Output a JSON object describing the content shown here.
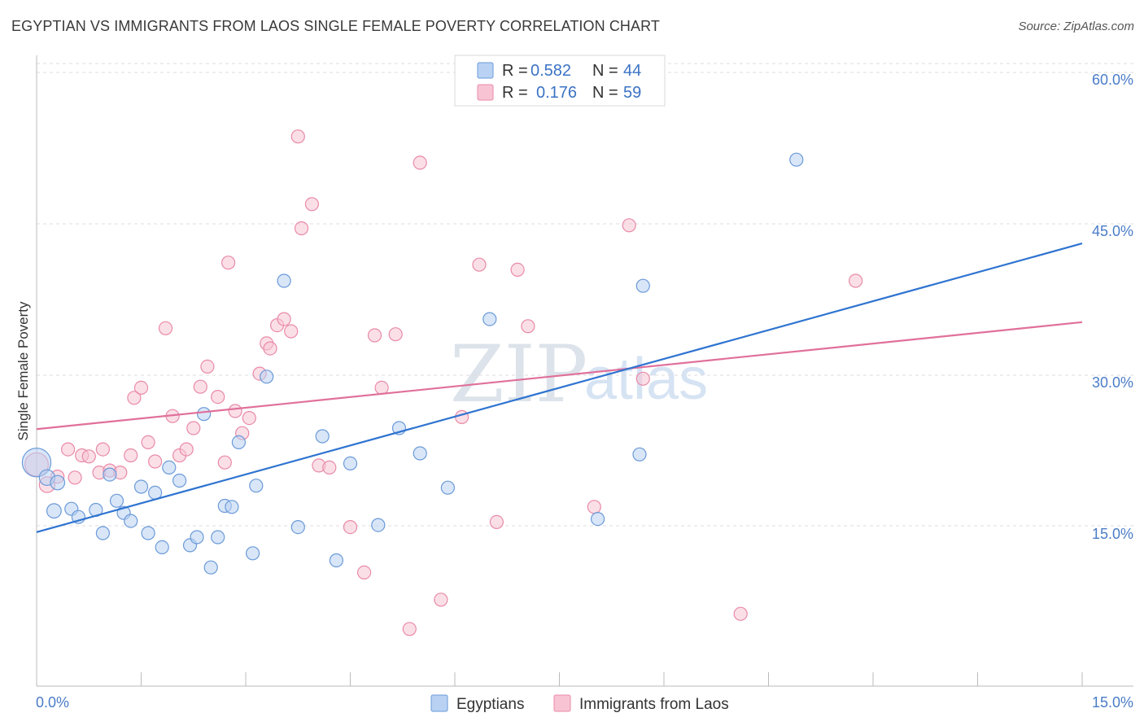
{
  "header": {
    "title": "EGYPTIAN VS IMMIGRANTS FROM LAOS SINGLE FEMALE POVERTY CORRELATION CHART",
    "source": "Source: ZipAtlas.com"
  },
  "watermark": {
    "zip": "ZIP",
    "atlas": "atlas"
  },
  "colors": {
    "blue_fill": "#b9d2f3",
    "blue_stroke": "#6a9ad8",
    "blue_line": "#2f74d0",
    "pink_fill": "#f8c4d4",
    "pink_stroke": "#e98aa8",
    "pink_line": "#e0709a",
    "grid": "#dcdcdc",
    "tick_text": "#4a7cc8"
  },
  "legend": {
    "rows": [
      {
        "r_label": "R =",
        "r_value": "0.582",
        "n_label": "N =",
        "n_value": "44",
        "series": "blue"
      },
      {
        "r_label": "R =",
        "r_value": "0.176",
        "n_label": "N =",
        "n_value": "59",
        "series": "pink"
      }
    ]
  },
  "chart_data": {
    "type": "scatter",
    "title": "EGYPTIAN VS IMMIGRANTS FROM LAOS SINGLE FEMALE POVERTY CORRELATION CHART",
    "xlabel": "",
    "ylabel": "Single Female Poverty",
    "xlim": [
      0,
      15
    ],
    "ylim": [
      0,
      62
    ],
    "x_tick_labels": [
      "0.0%",
      "15.0%"
    ],
    "y_ticks": [
      15,
      30,
      45,
      60
    ],
    "y_tick_labels": [
      "15.0%",
      "30.0%",
      "45.0%",
      "60.0%"
    ],
    "grid": "horizontal dashed",
    "legend_position": "top-center",
    "series": [
      {
        "name": "Egyptians",
        "color": "blue",
        "R": 0.582,
        "N": 44,
        "trend": {
          "x": [
            0,
            15
          ],
          "y": [
            15.1,
            43.7
          ]
        },
        "points": [
          [
            0.0,
            22.0,
            22
          ],
          [
            0.15,
            20.5,
            12
          ],
          [
            0.3,
            20.0,
            11
          ],
          [
            0.25,
            17.2,
            11
          ],
          [
            0.5,
            17.4,
            10
          ],
          [
            0.6,
            16.6,
            10
          ],
          [
            0.85,
            17.3,
            10
          ],
          [
            0.95,
            15.0,
            10
          ],
          [
            1.05,
            20.8,
            10
          ],
          [
            1.15,
            18.2,
            10
          ],
          [
            1.25,
            17.0,
            10
          ],
          [
            1.35,
            16.2,
            10
          ],
          [
            1.5,
            19.6,
            10
          ],
          [
            1.6,
            15.0,
            10
          ],
          [
            1.7,
            19.0,
            10
          ],
          [
            1.8,
            13.6,
            10
          ],
          [
            1.9,
            21.5,
            10
          ],
          [
            2.05,
            20.2,
            10
          ],
          [
            2.2,
            13.8,
            10
          ],
          [
            2.3,
            14.6,
            10
          ],
          [
            2.4,
            26.8,
            10
          ],
          [
            2.5,
            11.6,
            10
          ],
          [
            2.6,
            14.6,
            10
          ],
          [
            2.7,
            17.7,
            10
          ],
          [
            2.8,
            17.6,
            10
          ],
          [
            2.9,
            24.0,
            10
          ],
          [
            3.1,
            13.0,
            10
          ],
          [
            3.15,
            19.7,
            10
          ],
          [
            3.3,
            30.5,
            10
          ],
          [
            3.55,
            40.0,
            10
          ],
          [
            3.75,
            15.6,
            10
          ],
          [
            4.1,
            24.6,
            10
          ],
          [
            4.3,
            12.3,
            10
          ],
          [
            4.5,
            21.9,
            10
          ],
          [
            4.9,
            15.8,
            10
          ],
          [
            5.2,
            25.4,
            10
          ],
          [
            5.5,
            22.9,
            10
          ],
          [
            5.9,
            19.5,
            10
          ],
          [
            6.5,
            36.2,
            10
          ],
          [
            8.05,
            16.4,
            10
          ],
          [
            8.65,
            22.8,
            10
          ],
          [
            8.7,
            39.5,
            10
          ],
          [
            10.9,
            52.0,
            10
          ]
        ]
      },
      {
        "name": "Immigrants from Laos",
        "color": "pink",
        "R": 0.176,
        "N": 59,
        "trend": {
          "x": [
            0,
            15
          ],
          "y": [
            25.3,
            35.9
          ]
        },
        "points": [
          [
            0.0,
            21.8,
            18
          ],
          [
            0.15,
            19.8,
            12
          ],
          [
            0.3,
            20.6,
            10
          ],
          [
            0.45,
            23.3,
            10
          ],
          [
            0.55,
            20.5,
            10
          ],
          [
            0.65,
            22.7,
            10
          ],
          [
            0.75,
            22.6,
            10
          ],
          [
            0.9,
            21.0,
            10
          ],
          [
            0.95,
            23.3,
            10
          ],
          [
            1.05,
            21.2,
            10
          ],
          [
            1.2,
            21.0,
            10
          ],
          [
            1.35,
            22.7,
            10
          ],
          [
            1.4,
            28.4,
            10
          ],
          [
            1.5,
            29.4,
            10
          ],
          [
            1.6,
            24.0,
            10
          ],
          [
            1.7,
            22.1,
            10
          ],
          [
            1.85,
            35.3,
            10
          ],
          [
            1.95,
            26.6,
            10
          ],
          [
            2.05,
            22.7,
            10
          ],
          [
            2.15,
            23.3,
            10
          ],
          [
            2.25,
            25.4,
            10
          ],
          [
            2.35,
            29.5,
            10
          ],
          [
            2.45,
            31.5,
            10
          ],
          [
            2.6,
            28.5,
            10
          ],
          [
            2.7,
            22.0,
            10
          ],
          [
            2.75,
            41.8,
            10
          ],
          [
            2.85,
            27.1,
            10
          ],
          [
            2.95,
            24.9,
            10
          ],
          [
            3.05,
            26.4,
            10
          ],
          [
            3.2,
            30.8,
            10
          ],
          [
            3.3,
            33.8,
            10
          ],
          [
            3.35,
            33.3,
            10
          ],
          [
            3.45,
            35.6,
            10
          ],
          [
            3.55,
            36.2,
            10
          ],
          [
            3.65,
            35.0,
            10
          ],
          [
            3.75,
            54.3,
            10
          ],
          [
            3.8,
            45.2,
            10
          ],
          [
            3.95,
            47.6,
            10
          ],
          [
            4.05,
            21.7,
            10
          ],
          [
            4.2,
            21.5,
            10
          ],
          [
            4.5,
            15.6,
            10
          ],
          [
            4.7,
            11.1,
            10
          ],
          [
            4.85,
            34.6,
            10
          ],
          [
            4.95,
            29.4,
            10
          ],
          [
            5.15,
            34.7,
            10
          ],
          [
            5.35,
            5.5,
            10
          ],
          [
            5.5,
            51.7,
            10
          ],
          [
            5.8,
            8.4,
            10
          ],
          [
            6.1,
            26.5,
            10
          ],
          [
            6.35,
            41.6,
            10
          ],
          [
            6.6,
            16.1,
            10
          ],
          [
            6.9,
            41.1,
            10
          ],
          [
            7.05,
            35.5,
            10
          ],
          [
            8.0,
            17.6,
            10
          ],
          [
            8.5,
            45.5,
            10
          ],
          [
            8.7,
            30.3,
            10
          ],
          [
            10.1,
            7.0,
            10
          ],
          [
            11.75,
            40.0,
            10
          ]
        ]
      }
    ]
  }
}
